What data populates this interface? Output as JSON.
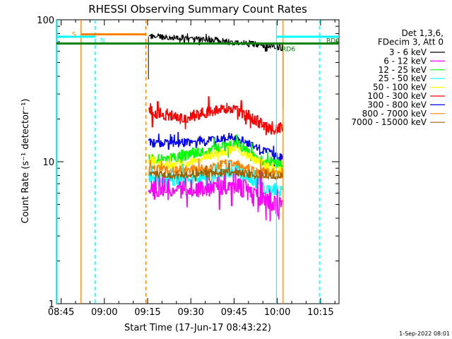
{
  "chart_data": {
    "type": "line",
    "title": "RHESSI Observing Summary Count Rates",
    "xlabel": "Start Time (17-Jun-17 08:43:22)",
    "ylabel": "Count Rate (s⁻¹ detector⁻¹)",
    "y_scale": "log",
    "ylim": [
      1,
      100
    ],
    "x_unit": "minutes after 08:43:22",
    "xlim": [
      0,
      98
    ],
    "x_ticks": [
      {
        "label": "08:45",
        "value": 1.6
      },
      {
        "label": "09:00",
        "value": 16.6
      },
      {
        "label": "09:15",
        "value": 31.6
      },
      {
        "label": "09:30",
        "value": 46.6
      },
      {
        "label": "09:45",
        "value": 61.6
      },
      {
        "label": "10:00",
        "value": 76.6
      },
      {
        "label": "10:15",
        "value": 91.6
      }
    ],
    "y_ticks": [
      {
        "label": "1",
        "value": 1
      },
      {
        "label": "10",
        "value": 10
      },
      {
        "label": "100",
        "value": 100
      }
    ],
    "legend": {
      "position": "top-right",
      "header": [
        "Det 1,3,6,",
        "FDecim 3, Att 0"
      ],
      "entries": [
        {
          "label": "3 - 6 keV",
          "color": "#000000"
        },
        {
          "label": "6 - 12 keV",
          "color": "#ff00ff"
        },
        {
          "label": "12 - 25 keV",
          "color": "#00ff00"
        },
        {
          "label": "25 - 50 keV",
          "color": "#00ffff"
        },
        {
          "label": "50 - 100 keV",
          "color": "#ffff00"
        },
        {
          "label": "100 - 300 keV",
          "color": "#ff0000"
        },
        {
          "label": "300 - 800 keV",
          "color": "#0000ff"
        },
        {
          "label": "800 - 7000 keV",
          "color": "#ff8000"
        },
        {
          "label": "7000 - 15000 keV",
          "color": "#a06000"
        }
      ]
    },
    "data_start": 31.9,
    "data_end": 78.6,
    "series": [
      {
        "name": "3 - 6 keV",
        "color": "#000000",
        "noise": 0.05,
        "x": [
          32,
          36,
          42,
          50,
          58,
          64,
          70,
          76,
          78.6
        ],
        "y": [
          76,
          76,
          75,
          73,
          71,
          69,
          67,
          64,
          63
        ]
      },
      {
        "name": "100 - 300 keV",
        "color": "#ff0000",
        "noise": 0.09,
        "x": [
          32,
          38,
          44,
          50,
          55,
          60,
          65,
          70,
          74,
          78.6
        ],
        "y": [
          23,
          21,
          20,
          22,
          23,
          24,
          22,
          19,
          17,
          17
        ]
      },
      {
        "name": "300 - 800 keV",
        "color": "#0000ff",
        "noise": 0.07,
        "x": [
          32,
          38,
          44,
          50,
          55,
          60,
          65,
          70,
          74,
          78.6
        ],
        "y": [
          13.5,
          13.5,
          13.5,
          14,
          14.5,
          15,
          14,
          12.5,
          11.5,
          10.5
        ]
      },
      {
        "name": "12 - 25 keV",
        "color": "#00ff00",
        "noise": 0.08,
        "x": [
          32,
          38,
          44,
          50,
          56,
          62,
          66,
          70,
          74,
          78.6
        ],
        "y": [
          10.5,
          10.5,
          11,
          11.5,
          12.5,
          13.5,
          12,
          10.5,
          10,
          9.5
        ]
      },
      {
        "name": "50 - 100 keV",
        "color": "#ffff00",
        "noise": 0.07,
        "x": [
          32,
          38,
          44,
          50,
          56,
          62,
          66,
          70,
          74,
          78.6
        ],
        "y": [
          9.8,
          9.5,
          9.5,
          10.5,
          11.5,
          12.5,
          11,
          10,
          9,
          8.5
        ]
      },
      {
        "name": "800 - 7000 keV",
        "color": "#ff8000",
        "noise": 0.07,
        "x": [
          32,
          38,
          44,
          50,
          56,
          62,
          66,
          70,
          74,
          78.6
        ],
        "y": [
          9,
          8.7,
          8.7,
          9,
          9.5,
          9.8,
          9,
          8.5,
          8.5,
          8
        ]
      },
      {
        "name": "25 - 50 keV",
        "color": "#00ffff",
        "noise": 0.11,
        "x": [
          32,
          38,
          44,
          50,
          56,
          62,
          66,
          70,
          74,
          78.6
        ],
        "y": [
          7.5,
          7.3,
          7.5,
          7.8,
          8,
          8.5,
          8,
          7,
          6.3,
          6
        ]
      },
      {
        "name": "6 - 12 keV",
        "color": "#ff00ff",
        "noise": 0.16,
        "x": [
          32,
          38,
          44,
          50,
          56,
          62,
          66,
          70,
          74,
          78.6
        ],
        "y": [
          6.8,
          6.5,
          6.3,
          6.5,
          6.8,
          7,
          6.2,
          5.5,
          5,
          4.8
        ]
      },
      {
        "name": "7000 - 15000 keV",
        "color": "#a06000",
        "noise": 0.06,
        "x": [
          32,
          40,
          50,
          60,
          70,
          78.6
        ],
        "y": [
          8.2,
          8,
          8.2,
          8.5,
          8,
          7.8
        ]
      }
    ],
    "annotations": {
      "rd6_level": 68,
      "rd6_label": "RD6",
      "rd6_color": "#008000",
      "saa_label": "S",
      "saa_color": "#ff8000",
      "saa_level": 79,
      "saa_range": [
        8.5,
        31
      ],
      "night_label": "N",
      "night_color": "#00ffff",
      "night_level": 76,
      "night_ranges": [
        [
          0,
          13.4
        ],
        [
          76.3,
          98
        ]
      ],
      "night_solid_lines": [
        0.1,
        76.3
      ],
      "night_dashed_lines": [
        13.4,
        91.2
      ],
      "saa_solid_lines": [
        8.5,
        78.6
      ],
      "saa_dashed_lines": [
        31
      ]
    },
    "footer_text": "1-Sep-2022 08:01"
  }
}
